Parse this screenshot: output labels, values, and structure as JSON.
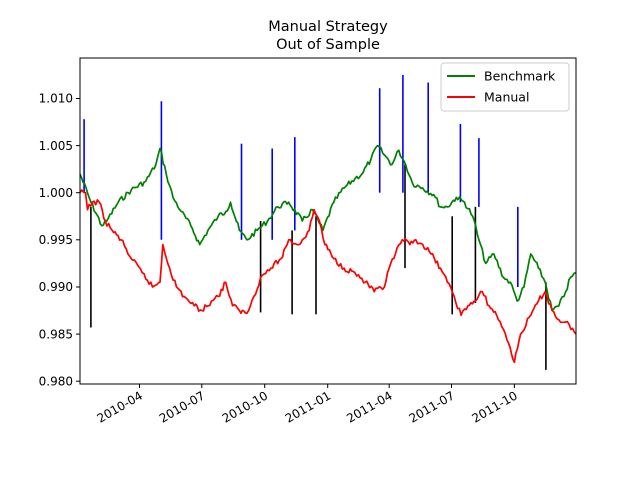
{
  "chart_data": {
    "type": "line",
    "title": "Manual Strategy",
    "subtitle": "Out of Sample",
    "xlabel": "",
    "ylabel": "",
    "x_range": [
      "2010-01-04",
      "2011-12-30"
    ],
    "ylim": [
      0.9797,
      1.0143
    ],
    "x_ticks": [
      {
        "date": "2010-04-01",
        "label": "2010-04"
      },
      {
        "date": "2010-07-01",
        "label": "2010-07"
      },
      {
        "date": "2010-10-01",
        "label": "2010-10"
      },
      {
        "date": "2011-01-01",
        "label": "2011-01"
      },
      {
        "date": "2011-04-01",
        "label": "2011-04"
      },
      {
        "date": "2011-07-01",
        "label": "2011-07"
      },
      {
        "date": "2011-10-01",
        "label": "2011-10"
      }
    ],
    "y_ticks": [
      {
        "value": 0.98,
        "label": "0.980"
      },
      {
        "value": 0.985,
        "label": "0.985"
      },
      {
        "value": 0.99,
        "label": "0.990"
      },
      {
        "value": 0.995,
        "label": "0.995"
      },
      {
        "value": 1.0,
        "label": "1.000"
      },
      {
        "value": 1.005,
        "label": "1.005"
      },
      {
        "value": 1.01,
        "label": "1.010"
      }
    ],
    "grid": false,
    "legend_position": "top-right",
    "series": [
      {
        "name": "Benchmark",
        "color": "#008000",
        "points": [
          [
            "2010-01-04",
            1.002
          ],
          [
            "2010-01-20",
            0.999
          ],
          [
            "2010-02-05",
            0.9965
          ],
          [
            "2010-02-12",
            0.997
          ],
          [
            "2010-03-01",
            0.999
          ],
          [
            "2010-03-20",
            1.0003
          ],
          [
            "2010-04-10",
            1.0012
          ],
          [
            "2010-04-25",
            1.003
          ],
          [
            "2010-05-01",
            1.0047
          ],
          [
            "2010-05-10",
            1.002
          ],
          [
            "2010-05-20",
            0.9995
          ],
          [
            "2010-06-01",
            0.998
          ],
          [
            "2010-06-15",
            0.9965
          ],
          [
            "2010-06-28",
            0.9945
          ],
          [
            "2010-07-10",
            0.996
          ],
          [
            "2010-07-25",
            0.9975
          ],
          [
            "2010-08-05",
            0.998
          ],
          [
            "2010-08-12",
            0.999
          ],
          [
            "2010-08-25",
            0.996
          ],
          [
            "2010-09-05",
            0.995
          ],
          [
            "2010-09-20",
            0.996
          ],
          [
            "2010-10-05",
            0.997
          ],
          [
            "2010-10-20",
            0.9985
          ],
          [
            "2010-11-05",
            0.999
          ],
          [
            "2010-11-25",
            0.997
          ],
          [
            "2010-12-10",
            0.9982
          ],
          [
            "2010-12-25",
            0.996
          ],
          [
            "2011-01-10",
            0.999
          ],
          [
            "2011-01-25",
            1.0005
          ],
          [
            "2011-02-10",
            1.0015
          ],
          [
            "2011-02-20",
            1.002
          ],
          [
            "2011-03-05",
            1.0035
          ],
          [
            "2011-03-15",
            1.005
          ],
          [
            "2011-03-25",
            1.004
          ],
          [
            "2011-04-05",
            1.003
          ],
          [
            "2011-04-15",
            1.0045
          ],
          [
            "2011-04-25",
            1.003
          ],
          [
            "2011-05-05",
            1.001
          ],
          [
            "2011-05-20",
            1.0005
          ],
          [
            "2011-06-05",
            0.9998
          ],
          [
            "2011-06-15",
            0.9985
          ],
          [
            "2011-06-25",
            0.9985
          ],
          [
            "2011-07-08",
            0.9995
          ],
          [
            "2011-07-20",
            0.999
          ],
          [
            "2011-08-01",
            0.9975
          ],
          [
            "2011-08-10",
            0.995
          ],
          [
            "2011-08-20",
            0.9925
          ],
          [
            "2011-09-01",
            0.9935
          ],
          [
            "2011-09-15",
            0.991
          ],
          [
            "2011-09-25",
            0.9905
          ],
          [
            "2011-10-05",
            0.9885
          ],
          [
            "2011-10-15",
            0.99
          ],
          [
            "2011-10-25",
            0.9935
          ],
          [
            "2011-11-05",
            0.992
          ],
          [
            "2011-11-15",
            0.9905
          ],
          [
            "2011-11-25",
            0.9875
          ],
          [
            "2011-12-05",
            0.988
          ],
          [
            "2011-12-15",
            0.9895
          ],
          [
            "2011-12-22",
            0.991
          ],
          [
            "2011-12-30",
            0.9915
          ]
        ]
      },
      {
        "name": "Manual",
        "color": "#ff0000",
        "points": [
          [
            "2010-01-04",
            1.0
          ],
          [
            "2010-01-12",
            1.0
          ],
          [
            "2010-01-15",
            0.9982
          ],
          [
            "2010-01-22",
            0.999
          ],
          [
            "2010-02-01",
            0.999
          ],
          [
            "2010-02-10",
            0.997
          ],
          [
            "2010-02-20",
            0.996
          ],
          [
            "2010-03-05",
            0.995
          ],
          [
            "2010-03-20",
            0.993
          ],
          [
            "2010-04-05",
            0.9915
          ],
          [
            "2010-04-20",
            0.99
          ],
          [
            "2010-05-01",
            0.9905
          ],
          [
            "2010-05-05",
            0.9945
          ],
          [
            "2010-05-15",
            0.992
          ],
          [
            "2010-05-25",
            0.99
          ],
          [
            "2010-06-05",
            0.989
          ],
          [
            "2010-06-20",
            0.988
          ],
          [
            "2010-07-01",
            0.9875
          ],
          [
            "2010-07-15",
            0.9885
          ],
          [
            "2010-07-25",
            0.989
          ],
          [
            "2010-08-05",
            0.9905
          ],
          [
            "2010-08-15",
            0.988
          ],
          [
            "2010-08-25",
            0.9875
          ],
          [
            "2010-09-05",
            0.9872
          ],
          [
            "2010-09-15",
            0.989
          ],
          [
            "2010-09-25",
            0.991
          ],
          [
            "2010-10-10",
            0.992
          ],
          [
            "2010-10-25",
            0.993
          ],
          [
            "2010-11-05",
            0.995
          ],
          [
            "2010-11-20",
            0.9945
          ],
          [
            "2010-12-05",
            0.996
          ],
          [
            "2010-12-12",
            0.9982
          ],
          [
            "2010-12-20",
            0.997
          ],
          [
            "2010-12-28",
            0.9945
          ],
          [
            "2011-01-10",
            0.993
          ],
          [
            "2011-01-25",
            0.992
          ],
          [
            "2011-02-10",
            0.9915
          ],
          [
            "2011-02-25",
            0.9905
          ],
          [
            "2011-03-10",
            0.9895
          ],
          [
            "2011-03-25",
            0.99
          ],
          [
            "2011-04-01",
            0.992
          ],
          [
            "2011-04-10",
            0.9935
          ],
          [
            "2011-04-20",
            0.995
          ],
          [
            "2011-05-01",
            0.9945
          ],
          [
            "2011-05-10",
            0.995
          ],
          [
            "2011-05-20",
            0.9945
          ],
          [
            "2011-06-01",
            0.9935
          ],
          [
            "2011-06-15",
            0.992
          ],
          [
            "2011-06-25",
            0.9905
          ],
          [
            "2011-07-05",
            0.989
          ],
          [
            "2011-07-15",
            0.987
          ],
          [
            "2011-07-25",
            0.988
          ],
          [
            "2011-08-05",
            0.9885
          ],
          [
            "2011-08-15",
            0.9895
          ],
          [
            "2011-08-25",
            0.988
          ],
          [
            "2011-09-05",
            0.987
          ],
          [
            "2011-09-15",
            0.9855
          ],
          [
            "2011-09-25",
            0.9835
          ],
          [
            "2011-10-01",
            0.982
          ],
          [
            "2011-10-10",
            0.985
          ],
          [
            "2011-10-25",
            0.987
          ],
          [
            "2011-11-05",
            0.9885
          ],
          [
            "2011-11-15",
            0.9895
          ],
          [
            "2011-11-25",
            0.9875
          ],
          [
            "2011-12-05",
            0.9865
          ],
          [
            "2011-12-20",
            0.986
          ],
          [
            "2011-12-30",
            0.985
          ]
        ]
      }
    ],
    "markers": [
      {
        "date": "2010-01-10",
        "color": "#0000ff",
        "y0": 1.0,
        "y1": 1.0078
      },
      {
        "date": "2010-01-20",
        "color": "#000000",
        "y0": 0.9857,
        "y1": 0.9985
      },
      {
        "date": "2010-05-03",
        "color": "#0000ff",
        "y0": 0.995,
        "y1": 1.0097
      },
      {
        "date": "2010-08-28",
        "color": "#0000ff",
        "y0": 0.995,
        "y1": 1.0052
      },
      {
        "date": "2010-09-25",
        "color": "#000000",
        "y0": 0.9873,
        "y1": 0.997
      },
      {
        "date": "2010-10-12",
        "color": "#0000ff",
        "y0": 0.995,
        "y1": 1.0047
      },
      {
        "date": "2010-11-10",
        "color": "#000000",
        "y0": 0.9871,
        "y1": 0.996
      },
      {
        "date": "2010-11-14",
        "color": "#0000ff",
        "y0": 0.996,
        "y1": 1.0059
      },
      {
        "date": "2010-12-15",
        "color": "#000000",
        "y0": 0.9871,
        "y1": 0.9975
      },
      {
        "date": "2011-03-18",
        "color": "#0000ff",
        "y0": 1.0,
        "y1": 1.0111
      },
      {
        "date": "2011-04-21",
        "color": "#0000ff",
        "y0": 1.0,
        "y1": 1.0125
      },
      {
        "date": "2011-04-24",
        "color": "#000000",
        "y0": 0.992,
        "y1": 1.003
      },
      {
        "date": "2011-05-28",
        "color": "#0000ff",
        "y0": 1.0,
        "y1": 1.0117
      },
      {
        "date": "2011-07-02",
        "color": "#000000",
        "y0": 0.9871,
        "y1": 0.9975
      },
      {
        "date": "2011-07-14",
        "color": "#0000ff",
        "y0": 0.999,
        "y1": 1.0073
      },
      {
        "date": "2011-08-05",
        "color": "#000000",
        "y0": 0.9883,
        "y1": 0.9985
      },
      {
        "date": "2011-08-10",
        "color": "#0000ff",
        "y0": 0.9985,
        "y1": 1.0058
      },
      {
        "date": "2011-10-06",
        "color": "#0000ff",
        "y0": 0.99,
        "y1": 0.9985
      },
      {
        "date": "2011-11-16",
        "color": "#000000",
        "y0": 0.9812,
        "y1": 0.9905
      }
    ]
  }
}
